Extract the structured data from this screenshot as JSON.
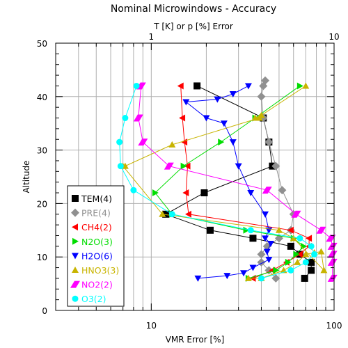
{
  "chart_data": {
    "type": "line",
    "title": "Nominal Microwindows - Accuracy",
    "top_axis_label": "T [K] or p [%] Error",
    "xlabel": "VMR Error [%]",
    "ylabel": "Altitude",
    "x_scale": "log",
    "xlim": [
      3,
      100
    ],
    "ylim": [
      0,
      50
    ],
    "top_ticks": [
      "1",
      "10"
    ],
    "x_ticks": [
      "10",
      "100"
    ],
    "y_ticks": [
      "0",
      "10",
      "20",
      "30",
      "40",
      "50"
    ],
    "grid": true,
    "legend_position": "lower-left",
    "series": [
      {
        "name": "TEM(4)",
        "color": "#000000",
        "marker": "square",
        "x": [
          69,
          75,
          75,
          65,
          58,
          36,
          21,
          12,
          19.5,
          46,
          44,
          41,
          17.8
        ],
        "y": [
          6,
          7.5,
          9,
          10.5,
          12,
          13.5,
          15,
          18,
          22,
          27,
          31.5,
          36,
          42
        ]
      },
      {
        "name": "PRE(4)",
        "color": "#909090",
        "marker": "diamond",
        "x": [
          48,
          44,
          40,
          40,
          43,
          50,
          58,
          60,
          52,
          48,
          44,
          41,
          40,
          41,
          42
        ],
        "y": [
          6,
          7.5,
          9,
          10.5,
          12,
          13.5,
          15,
          18,
          22.5,
          27,
          31.5,
          36,
          40,
          42,
          43
        ]
      },
      {
        "name": "CH4(2)",
        "color": "#ff0000",
        "marker": "triangle-left",
        "x": [
          36,
          46,
          55,
          65,
          73,
          73,
          58,
          16,
          15.5,
          15.8,
          15.2,
          14.8,
          14.5
        ],
        "y": [
          6,
          7.5,
          9,
          10.5,
          12,
          13.5,
          15,
          18,
          22,
          27,
          31.5,
          36,
          42
        ]
      },
      {
        "name": "N2O(3)",
        "color": "#00dd00",
        "marker": "triangle-right",
        "x": [
          34,
          48,
          56,
          62,
          68,
          60,
          33,
          13,
          10.5,
          15,
          24,
          37,
          65
        ],
        "y": [
          6,
          7.5,
          9,
          10.5,
          12,
          13.5,
          15,
          18,
          22,
          27,
          31.5,
          36,
          42
        ]
      },
      {
        "name": "H2O(6)",
        "color": "#0000ff",
        "marker": "triangle-down",
        "x": [
          18,
          26,
          32,
          36,
          44,
          43,
          45,
          42,
          44,
          42,
          35,
          30,
          28,
          25,
          20,
          15.5,
          23,
          28,
          34
        ],
        "y": [
          6,
          6.5,
          7,
          8,
          9.5,
          11,
          12.5,
          13.5,
          15,
          18,
          22,
          27,
          31.5,
          35,
          36,
          39,
          39.5,
          40.5,
          42
        ]
      },
      {
        "name": "HNO3(3)",
        "color": "#c8b400",
        "marker": "triangle-up",
        "x": [
          34,
          40,
          53,
          63,
          70,
          78,
          85,
          88,
          60,
          50,
          11.5,
          7,
          7.2,
          13,
          39,
          37,
          40,
          70
        ],
        "y": [
          6,
          6,
          7.5,
          9,
          10.5,
          10.8,
          11,
          7.5,
          13.5,
          15,
          18,
          27,
          27,
          31,
          36,
          36,
          36.5,
          42
        ]
      },
      {
        "name": "NO2(2)",
        "color": "#ff00ff",
        "marker": "bar",
        "x": [
          98,
          98,
          98,
          98,
          96,
          85,
          62,
          43,
          12.5,
          9,
          8.5,
          8.8
        ],
        "y": [
          6,
          9,
          10.5,
          12,
          13.5,
          15,
          18,
          22.5,
          27,
          31.5,
          36,
          42
        ]
      },
      {
        "name": "O3(2)",
        "color": "#00ffff",
        "marker": "circle",
        "x": [
          40,
          58,
          70,
          78,
          75,
          65,
          35,
          13,
          8,
          6.8,
          6.7,
          7.2,
          8.3
        ],
        "y": [
          6,
          7.5,
          9,
          10.5,
          12,
          13.5,
          15,
          18,
          22.5,
          27,
          31.5,
          36,
          42
        ]
      }
    ]
  }
}
